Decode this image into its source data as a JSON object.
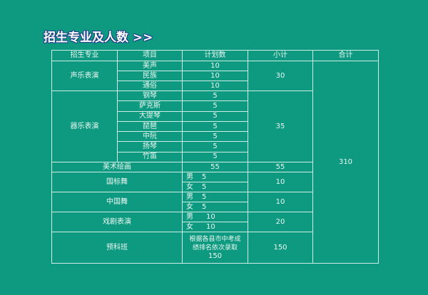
{
  "title": "招生专业及人数 >>",
  "headers": [
    "招生专业",
    "项目",
    "计划数",
    "小计",
    "合计"
  ],
  "total": "310",
  "vocal": {
    "name": "声乐表演",
    "subtotal": "30",
    "items": [
      {
        "item": "美声",
        "plan": "10"
      },
      {
        "item": "民族",
        "plan": "10"
      },
      {
        "item": "通俗",
        "plan": "10"
      }
    ]
  },
  "instrument": {
    "name": "器乐表演",
    "subtotal": "35",
    "items": [
      {
        "item": "钢琴",
        "plan": "5"
      },
      {
        "item": "萨克斯",
        "plan": "5"
      },
      {
        "item": "大提琴",
        "plan": "5"
      },
      {
        "item": "琵琶",
        "plan": "5"
      },
      {
        "item": "中阮",
        "plan": "5"
      },
      {
        "item": "扬琴",
        "plan": "5"
      },
      {
        "item": "竹笛",
        "plan": "5"
      }
    ]
  },
  "art": {
    "name": "美术绘画",
    "plan": "55",
    "subtotal": "55"
  },
  "ballroom": {
    "name": "国标舞",
    "subtotal": "10",
    "items": [
      {
        "gender": "男",
        "plan": "5"
      },
      {
        "gender": "女",
        "plan": "5"
      }
    ]
  },
  "chinese_dance": {
    "name": "中国舞",
    "subtotal": "10",
    "items": [
      {
        "gender": "男",
        "plan": "5"
      },
      {
        "gender": "女",
        "plan": "5"
      }
    ]
  },
  "drama": {
    "name": "戏剧表演",
    "subtotal": "20",
    "items": [
      {
        "gender": "男",
        "plan": "10"
      },
      {
        "gender": "女",
        "plan": "10"
      }
    ]
  },
  "prep": {
    "name": "预科班",
    "note_line1": "根据各县市中考成",
    "note_line2": "绩排名依次录取",
    "plan": "150",
    "subtotal": "150"
  }
}
